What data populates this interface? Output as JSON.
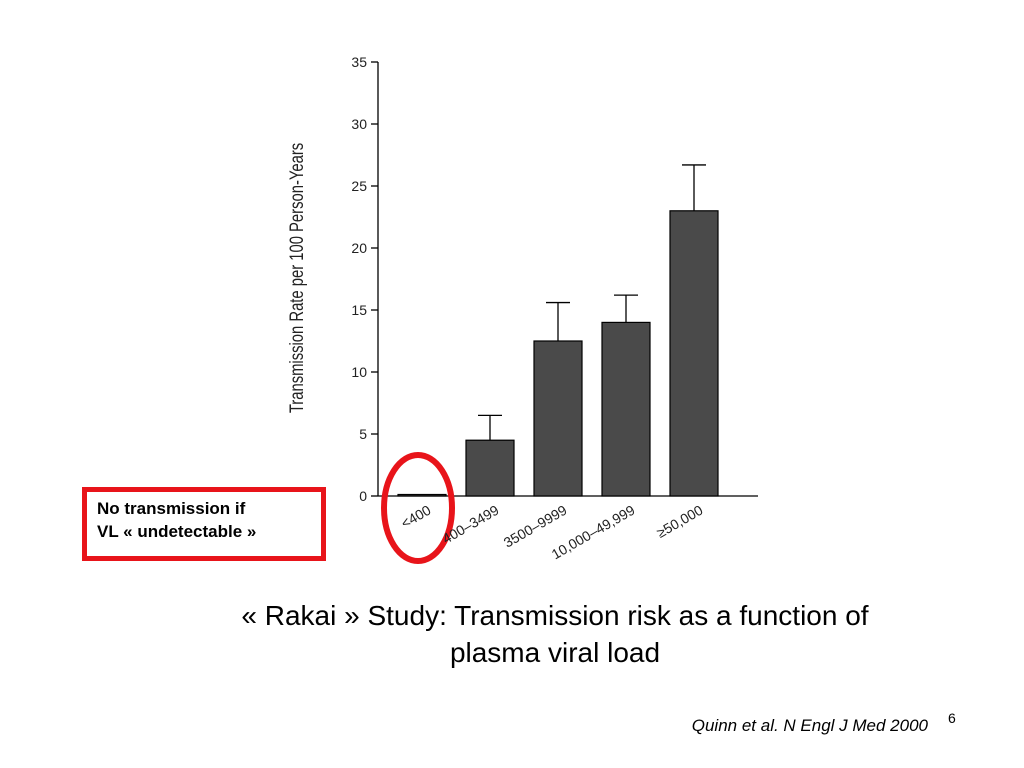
{
  "chart_data": {
    "type": "bar",
    "ylabel": "Transmission Rate per 100 Person-Years",
    "xlabel": "",
    "ylim": [
      0,
      35
    ],
    "yticks": [
      "0",
      "5",
      "10",
      "15",
      "20",
      "25",
      "30",
      "35"
    ],
    "categories": [
      "<400",
      "400–3499",
      "3500–9999",
      "10,000–49,999",
      "≥50,000"
    ],
    "values": [
      0,
      4.5,
      12.5,
      14.0,
      23.0
    ],
    "error_upper": [
      0,
      6.5,
      15.6,
      16.2,
      26.7
    ],
    "bar_color": "#4a4a4a",
    "highlight_color": "#e8141a",
    "highlighted_category": "<400",
    "grid": false,
    "legend": "none"
  },
  "callout": {
    "line1": "No transmission if",
    "line2": "VL « undetectable »"
  },
  "caption": {
    "line1": "« Rakai » Study:  Transmission risk as a function of",
    "line2": "plasma viral load"
  },
  "citation": "Quinn et al. N Engl J Med 2000",
  "page_number": "6"
}
